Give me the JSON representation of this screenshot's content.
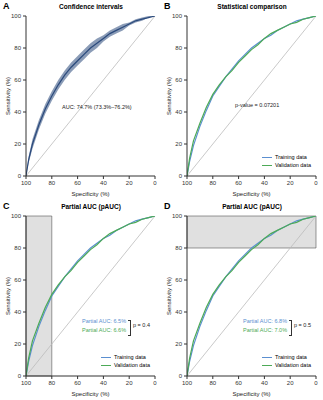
{
  "chart_data": [
    {
      "type": "line",
      "panel": "A",
      "title": "Confidence intervals",
      "x_label": "Specificity (%)",
      "y_label": "Sensitivity (%)",
      "xlim": [
        100,
        0
      ],
      "xticks": [
        100,
        80,
        60,
        40,
        20,
        0
      ],
      "ylim": [
        0,
        100
      ],
      "yticks": [
        0,
        20,
        40,
        60,
        80,
        100
      ],
      "grid": false,
      "x": [
        100,
        98,
        95,
        90,
        85,
        80,
        75,
        70,
        65,
        60,
        55,
        50,
        45,
        40,
        35,
        30,
        25,
        20,
        15,
        10,
        5,
        0
      ],
      "series": [
        {
          "color": "#2b4a7c",
          "values": [
            0,
            10,
            20,
            32,
            42,
            50,
            57,
            63,
            68,
            72,
            76,
            80,
            83,
            86,
            89,
            91,
            93,
            95,
            97,
            98,
            99,
            100
          ],
          "ci_lower": [
            0,
            8,
            17,
            29,
            39,
            47,
            54,
            60,
            65,
            69,
            73,
            77,
            80,
            84,
            87,
            89,
            91,
            94,
            96,
            97,
            99,
            100
          ],
          "ci_upper": [
            0,
            12,
            23,
            35,
            45,
            53,
            60,
            66,
            71,
            75,
            79,
            83,
            86,
            88,
            91,
            93,
            95,
            96,
            98,
            99,
            100,
            100
          ]
        }
      ],
      "reference_line": [
        [
          100,
          0
        ],
        [
          0,
          100
        ]
      ],
      "annotations": [
        {
          "text": "AUC: 74.7% (73.3%–76.2%)",
          "color": "#222222"
        }
      ]
    },
    {
      "type": "line",
      "panel": "B",
      "title": "Statistical comparison",
      "x_label": "Specificity (%)",
      "y_label": "Sensitivity (%)",
      "xlim": [
        100,
        0
      ],
      "xticks": [
        100,
        80,
        60,
        40,
        20,
        0
      ],
      "ylim": [
        0,
        100
      ],
      "yticks": [
        0,
        20,
        40,
        60,
        80,
        100
      ],
      "grid": false,
      "legend": "lower right",
      "x": [
        100,
        98,
        95,
        90,
        85,
        80,
        75,
        70,
        65,
        60,
        55,
        50,
        45,
        40,
        35,
        30,
        25,
        20,
        15,
        10,
        5,
        0
      ],
      "series": [
        {
          "name": "Training data",
          "color": "#5b8fd0",
          "values": [
            0,
            9,
            19,
            31,
            41,
            50,
            56,
            62,
            67,
            72,
            76,
            80,
            83,
            86,
            88,
            91,
            93,
            95,
            97,
            98,
            99,
            100
          ]
        },
        {
          "name": "Validation data",
          "color": "#4daa57",
          "values": [
            0,
            11,
            22,
            33,
            43,
            51,
            57,
            62,
            66,
            71,
            75,
            79,
            82,
            86,
            89,
            91,
            93,
            95,
            96,
            98,
            99,
            100
          ]
        }
      ],
      "reference_line": [
        [
          100,
          0
        ],
        [
          0,
          100
        ]
      ],
      "annotations": [
        {
          "text": "p-value = 0.07201",
          "color": "#222222"
        }
      ]
    },
    {
      "type": "line",
      "panel": "C",
      "title": "Partial AUC (pAUC)",
      "x_label": "Specificity (%)",
      "y_label": "Sensitivity (%)",
      "xlim": [
        100,
        0
      ],
      "xticks": [
        100,
        80,
        60,
        40,
        20,
        0
      ],
      "ylim": [
        0,
        100
      ],
      "yticks": [
        0,
        20,
        40,
        60,
        80,
        100
      ],
      "grid": false,
      "legend": "lower right",
      "x": [
        100,
        98,
        95,
        90,
        85,
        80,
        75,
        70,
        65,
        60,
        55,
        50,
        45,
        40,
        35,
        30,
        25,
        20,
        15,
        10,
        5,
        0
      ],
      "series": [
        {
          "name": "Training data",
          "color": "#5b8fd0",
          "values": [
            0,
            9,
            19,
            31,
            41,
            50,
            56,
            62,
            67,
            72,
            76,
            80,
            83,
            86,
            88,
            91,
            93,
            95,
            97,
            98,
            99,
            100
          ]
        },
        {
          "name": "Validation data",
          "color": "#4daa57",
          "values": [
            0,
            11,
            22,
            33,
            43,
            51,
            57,
            62,
            66,
            71,
            75,
            79,
            82,
            86,
            89,
            91,
            93,
            95,
            96,
            98,
            99,
            100
          ]
        }
      ],
      "reference_line": [
        [
          100,
          0
        ],
        [
          0,
          100
        ]
      ],
      "shaded_region": {
        "x": [
          100,
          80
        ],
        "y": [
          0,
          100
        ]
      },
      "annotations": [
        {
          "text": "Partial AUC: 6.5%",
          "color": "#5b8fd0"
        },
        {
          "text": "Partial AUC: 6.6%",
          "color": "#4daa57"
        },
        {
          "text": "p = 0.4",
          "color": "#222222"
        }
      ]
    },
    {
      "type": "line",
      "panel": "D",
      "title": "Partial AUC (pAUC)",
      "x_label": "Specificity (%)",
      "y_label": "Sensitivity (%)",
      "xlim": [
        100,
        0
      ],
      "xticks": [
        100,
        80,
        60,
        40,
        20,
        0
      ],
      "ylim": [
        0,
        100
      ],
      "yticks": [
        0,
        20,
        40,
        60,
        80,
        100
      ],
      "grid": false,
      "legend": "lower right",
      "x": [
        100,
        98,
        95,
        90,
        85,
        80,
        75,
        70,
        65,
        60,
        55,
        50,
        45,
        40,
        35,
        30,
        25,
        20,
        15,
        10,
        5,
        0
      ],
      "series": [
        {
          "name": "Training data",
          "color": "#5b8fd0",
          "values": [
            0,
            9,
            19,
            31,
            41,
            50,
            56,
            62,
            67,
            72,
            76,
            80,
            83,
            86,
            88,
            91,
            93,
            95,
            97,
            98,
            99,
            100
          ]
        },
        {
          "name": "Validation data",
          "color": "#4daa57",
          "values": [
            0,
            11,
            22,
            33,
            43,
            51,
            57,
            62,
            66,
            71,
            75,
            79,
            82,
            86,
            89,
            91,
            93,
            95,
            96,
            98,
            99,
            100
          ]
        }
      ],
      "reference_line": [
        [
          100,
          0
        ],
        [
          0,
          100
        ]
      ],
      "shaded_region": {
        "x": [
          100,
          0
        ],
        "y": [
          80,
          100
        ]
      },
      "annotations": [
        {
          "text": "Partial AUC: 6.8%",
          "color": "#5b8fd0"
        },
        {
          "text": "Partial AUC: 7.0%",
          "color": "#4daa57"
        },
        {
          "text": "p = 0.5",
          "color": "#222222"
        }
      ]
    }
  ]
}
